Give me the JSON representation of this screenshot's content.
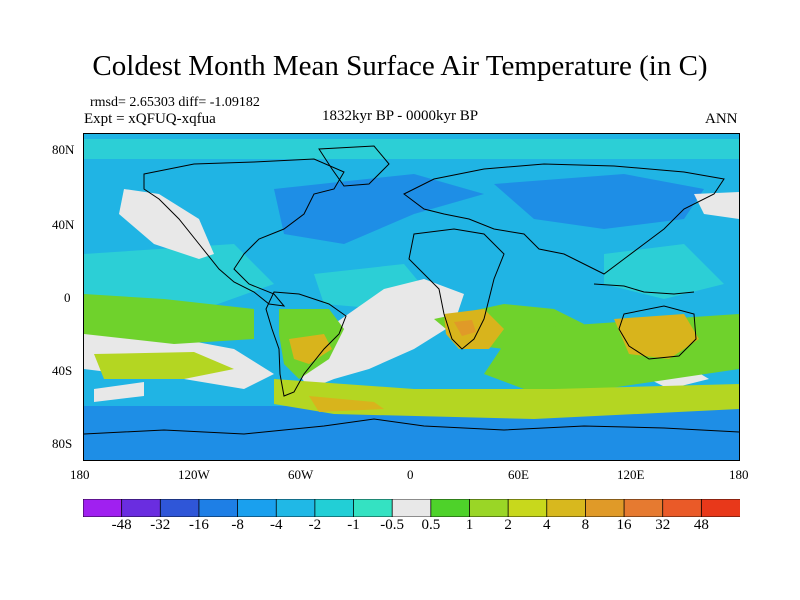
{
  "title": "Coldest Month Mean Surface Air Temperature (in C)",
  "stats": "rmsd= 2.65303 diff= -1.09182",
  "experiment": "Expt = xQFUQ-xqfua",
  "period": "1832kyr BP - 0000kyr BP",
  "season": "ANN",
  "lat_ticks": [
    "80N",
    "40N",
    "0",
    "40S",
    "80S"
  ],
  "lon_ticks": [
    "180",
    "120W",
    "60W",
    "0",
    "60E",
    "120E",
    "180"
  ],
  "colorbar": {
    "labels": [
      "-48",
      "-32",
      "-16",
      "-8",
      "-4",
      "-2",
      "-1",
      "-0.5",
      "0.5",
      "1",
      "2",
      "4",
      "8",
      "16",
      "32",
      "48"
    ],
    "colors": [
      "#a020f0",
      "#6a2de0",
      "#2f56d8",
      "#1e7fe6",
      "#1aa0ee",
      "#20b8e6",
      "#22cfd6",
      "#34e2c2",
      "#e8e8e8",
      "#4ed22a",
      "#9ad626",
      "#c8d81c",
      "#d8b81e",
      "#e09a28",
      "#e67a30",
      "#ea5a28",
      "#e8381a"
    ]
  },
  "map_colors": {
    "base": "#20b4e4",
    "deep": "#1e8ee6",
    "cool": "#2ccfd6",
    "neutral": "#e8e8e8",
    "green": "#6fd22c",
    "yellowgreen": "#b4d622",
    "warm": "#d8b41c",
    "orange": "#e09a28",
    "coast": "#000000"
  }
}
